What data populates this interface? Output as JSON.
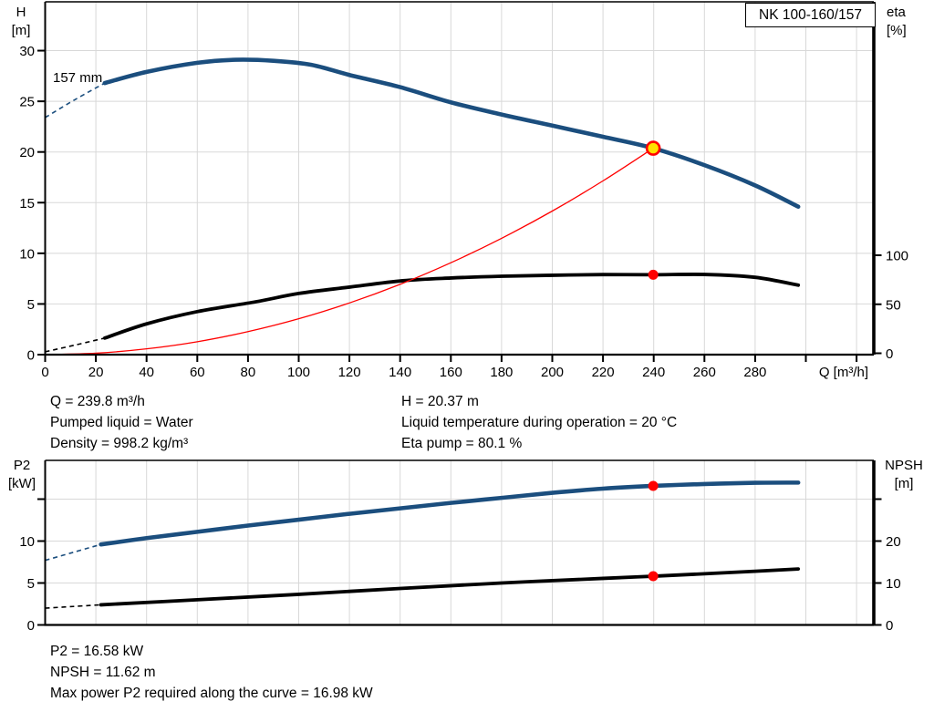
{
  "title_box": {
    "label": "NK 100-160/157"
  },
  "impeller_label": "157 mm",
  "axes_labels": {
    "top_left": [
      "H",
      "[m]"
    ],
    "top_right": [
      "eta",
      "[%]"
    ],
    "x": "Q [m³/h]",
    "bottom_left": [
      "P2",
      "[kW]"
    ],
    "bottom_right": [
      "NPSH",
      "[m]"
    ]
  },
  "info_top_left": [
    "Q = 239.8 m³/h",
    "Pumped liquid = Water",
    "Density = 998.2 kg/m³"
  ],
  "info_top_right": [
    "H = 20.37 m",
    "Liquid temperature during operation = 20 °C",
    "Eta pump = 80.1 %"
  ],
  "info_bottom": [
    "P2 = 16.58 kW",
    "NPSH = 11.62 m",
    "Max power P2 required along the curve = 16.98 kW"
  ],
  "colors": {
    "curve_blue": "#1b4e7e",
    "curve_black": "#000000",
    "system_red": "#ff0000",
    "dot_red": "#ff0000",
    "dot_yellow": "#ffe100",
    "grid": "#d8d8d8",
    "axis": "#000000",
    "background": "#ffffff"
  },
  "chart_data": [
    {
      "type": "line",
      "title": "NK 100-160/157",
      "xlabel": "Q [m³/h]",
      "x_ticks_labeled": [
        0,
        20,
        40,
        60,
        80,
        100,
        120,
        140,
        160,
        180,
        200,
        220,
        240,
        260,
        280
      ],
      "x_ticks_unlabeled": [
        300,
        320
      ],
      "x_max": 326,
      "y_left": {
        "label": "H [m]",
        "ticks": [
          0,
          5,
          10,
          15,
          20,
          25,
          30
        ],
        "max": 34.8
      },
      "y_right": {
        "label": "eta [%]",
        "ticks": [
          0,
          50,
          100
        ]
      },
      "grid": true,
      "legend_position": "none",
      "series": [
        {
          "name": "head-curve-157mm",
          "axis": "left",
          "color_key": "curve_blue",
          "width": 4.6,
          "dashed": [
            [
              0,
              23.4
            ],
            [
              12,
              25.2
            ],
            [
              23.5,
              26.8
            ]
          ],
          "points": [
            [
              23.5,
              26.8
            ],
            [
              40,
              27.9
            ],
            [
              60,
              28.8
            ],
            [
              75,
              29.1
            ],
            [
              90,
              29.0
            ],
            [
              105,
              28.6
            ],
            [
              120,
              27.6
            ],
            [
              140,
              26.4
            ],
            [
              160,
              24.9
            ],
            [
              180,
              23.7
            ],
            [
              200,
              22.6
            ],
            [
              220,
              21.5
            ],
            [
              239.8,
              20.37
            ],
            [
              260,
              18.7
            ],
            [
              280,
              16.7
            ],
            [
              297,
              14.6
            ]
          ]
        },
        {
          "name": "efficiency-curve",
          "axis": "right",
          "color_key": "curve_black",
          "width": 3.8,
          "dashed": [
            [
              0,
              1.5
            ],
            [
              12,
              8.5
            ],
            [
              23.5,
              15.5
            ]
          ],
          "points": [
            [
              23.5,
              15.5
            ],
            [
              40,
              30
            ],
            [
              60,
              42.5
            ],
            [
              83,
              52.5
            ],
            [
              100,
              61
            ],
            [
              120,
              67.5
            ],
            [
              141,
              74
            ],
            [
              160,
              76.8
            ],
            [
              180,
              78.6
            ],
            [
              200,
              79.6
            ],
            [
              220,
              80.3
            ],
            [
              239.8,
              80.1
            ],
            [
              260,
              80.4
            ],
            [
              280,
              77.5
            ],
            [
              297,
              69.5
            ]
          ]
        },
        {
          "name": "system-curve",
          "axis": "left",
          "color_key": "system_red",
          "width": 1.3,
          "points": [
            [
              0,
              0
            ],
            [
              20,
              0.14
            ],
            [
              40,
              0.57
            ],
            [
              60,
              1.27
            ],
            [
              80,
              2.27
            ],
            [
              100,
              3.54
            ],
            [
              120,
              5.1
            ],
            [
              140,
              6.94
            ],
            [
              160,
              9.07
            ],
            [
              180,
              11.48
            ],
            [
              200,
              14.17
            ],
            [
              220,
              17.15
            ],
            [
              239.8,
              20.37
            ]
          ]
        }
      ],
      "markers": [
        {
          "name": "duty-point",
          "axis": "left",
          "x": 239.8,
          "y": 20.37,
          "style": "yellow",
          "interactable": "true"
        },
        {
          "name": "efficiency-point",
          "axis": "right",
          "x": 239.8,
          "y": 80.1,
          "style": "red",
          "interactable": "false"
        }
      ]
    },
    {
      "type": "line",
      "xlabel": "Q [m³/h]",
      "x_max": 326,
      "x_grid": [
        20,
        40,
        60,
        80,
        100,
        120,
        140,
        160,
        180,
        200,
        220,
        240,
        260,
        280,
        300,
        320
      ],
      "y_left": {
        "label": "P2 [kW]",
        "ticks_labeled": [
          0,
          5,
          10
        ],
        "ticks_unlabeled": [
          15
        ]
      },
      "y_right": {
        "label": "NPSH [m]",
        "ticks_labeled": [
          0,
          10,
          20
        ],
        "ticks_unlabeled": [
          30
        ]
      },
      "grid": true,
      "legend_position": "none",
      "series": [
        {
          "name": "p2-curve",
          "axis": "left",
          "color_key": "curve_blue",
          "width": 4.6,
          "dashed": [
            [
              0,
              7.7
            ],
            [
              11,
              8.65
            ],
            [
              22,
              9.6
            ]
          ],
          "points": [
            [
              22,
              9.6
            ],
            [
              40,
              10.35
            ],
            [
              60,
              11.1
            ],
            [
              80,
              11.85
            ],
            [
              100,
              12.55
            ],
            [
              120,
              13.25
            ],
            [
              140,
              13.9
            ],
            [
              160,
              14.55
            ],
            [
              180,
              15.15
            ],
            [
              200,
              15.75
            ],
            [
              220,
              16.25
            ],
            [
              239.8,
              16.58
            ],
            [
              260,
              16.8
            ],
            [
              280,
              16.95
            ],
            [
              297,
              16.97
            ]
          ]
        },
        {
          "name": "npsh-curve",
          "axis": "right",
          "color_key": "curve_black",
          "width": 3.8,
          "dashed": [
            [
              0,
              4.0
            ],
            [
              11,
              4.4
            ],
            [
              22,
              4.8
            ]
          ],
          "points": [
            [
              22,
              4.8
            ],
            [
              60,
              6.0
            ],
            [
              100,
              7.3
            ],
            [
              140,
              8.7
            ],
            [
              180,
              10.0
            ],
            [
              220,
              11.1
            ],
            [
              239.8,
              11.62
            ],
            [
              260,
              12.2
            ],
            [
              280,
              12.8
            ],
            [
              297,
              13.35
            ]
          ]
        }
      ],
      "markers": [
        {
          "name": "p2-point",
          "axis": "left",
          "x": 239.8,
          "y": 16.58,
          "style": "red",
          "interactable": "false"
        },
        {
          "name": "npsh-point",
          "axis": "right",
          "x": 239.8,
          "y": 11.62,
          "style": "red",
          "interactable": "false"
        }
      ]
    }
  ]
}
